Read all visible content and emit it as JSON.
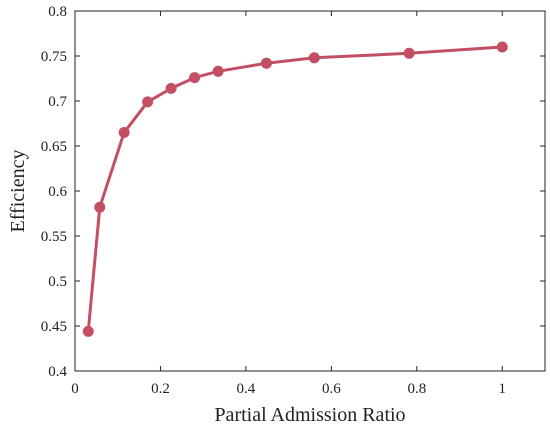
{
  "chart_data": {
    "type": "line",
    "title": "",
    "xlabel": "Partial Admission Ratio",
    "ylabel": "Efficiency",
    "xlim": [
      0,
      1.1
    ],
    "ylim": [
      0.4,
      0.8
    ],
    "grid": false,
    "x_ticks": [
      0,
      0.2,
      0.4,
      0.6,
      0.8,
      1
    ],
    "x_tick_labels": [
      "0",
      "0.2",
      "0.4",
      "0.6",
      "0.8",
      "1"
    ],
    "y_ticks": [
      0.4,
      0.45,
      0.5,
      0.55,
      0.6,
      0.65,
      0.7,
      0.75,
      0.8
    ],
    "y_tick_labels": [
      "0.4",
      "0.45",
      "0.5",
      "0.55",
      "0.6",
      "0.65",
      "0.7",
      "0.75",
      "0.8"
    ],
    "series": [
      {
        "color": "#c44e64",
        "x": [
          0.031,
          0.058,
          0.115,
          0.17,
          0.225,
          0.28,
          0.335,
          0.448,
          0.56,
          0.782,
          1.0
        ],
        "y": [
          0.444,
          0.582,
          0.665,
          0.699,
          0.714,
          0.726,
          0.733,
          0.742,
          0.748,
          0.753,
          0.76
        ]
      }
    ]
  }
}
